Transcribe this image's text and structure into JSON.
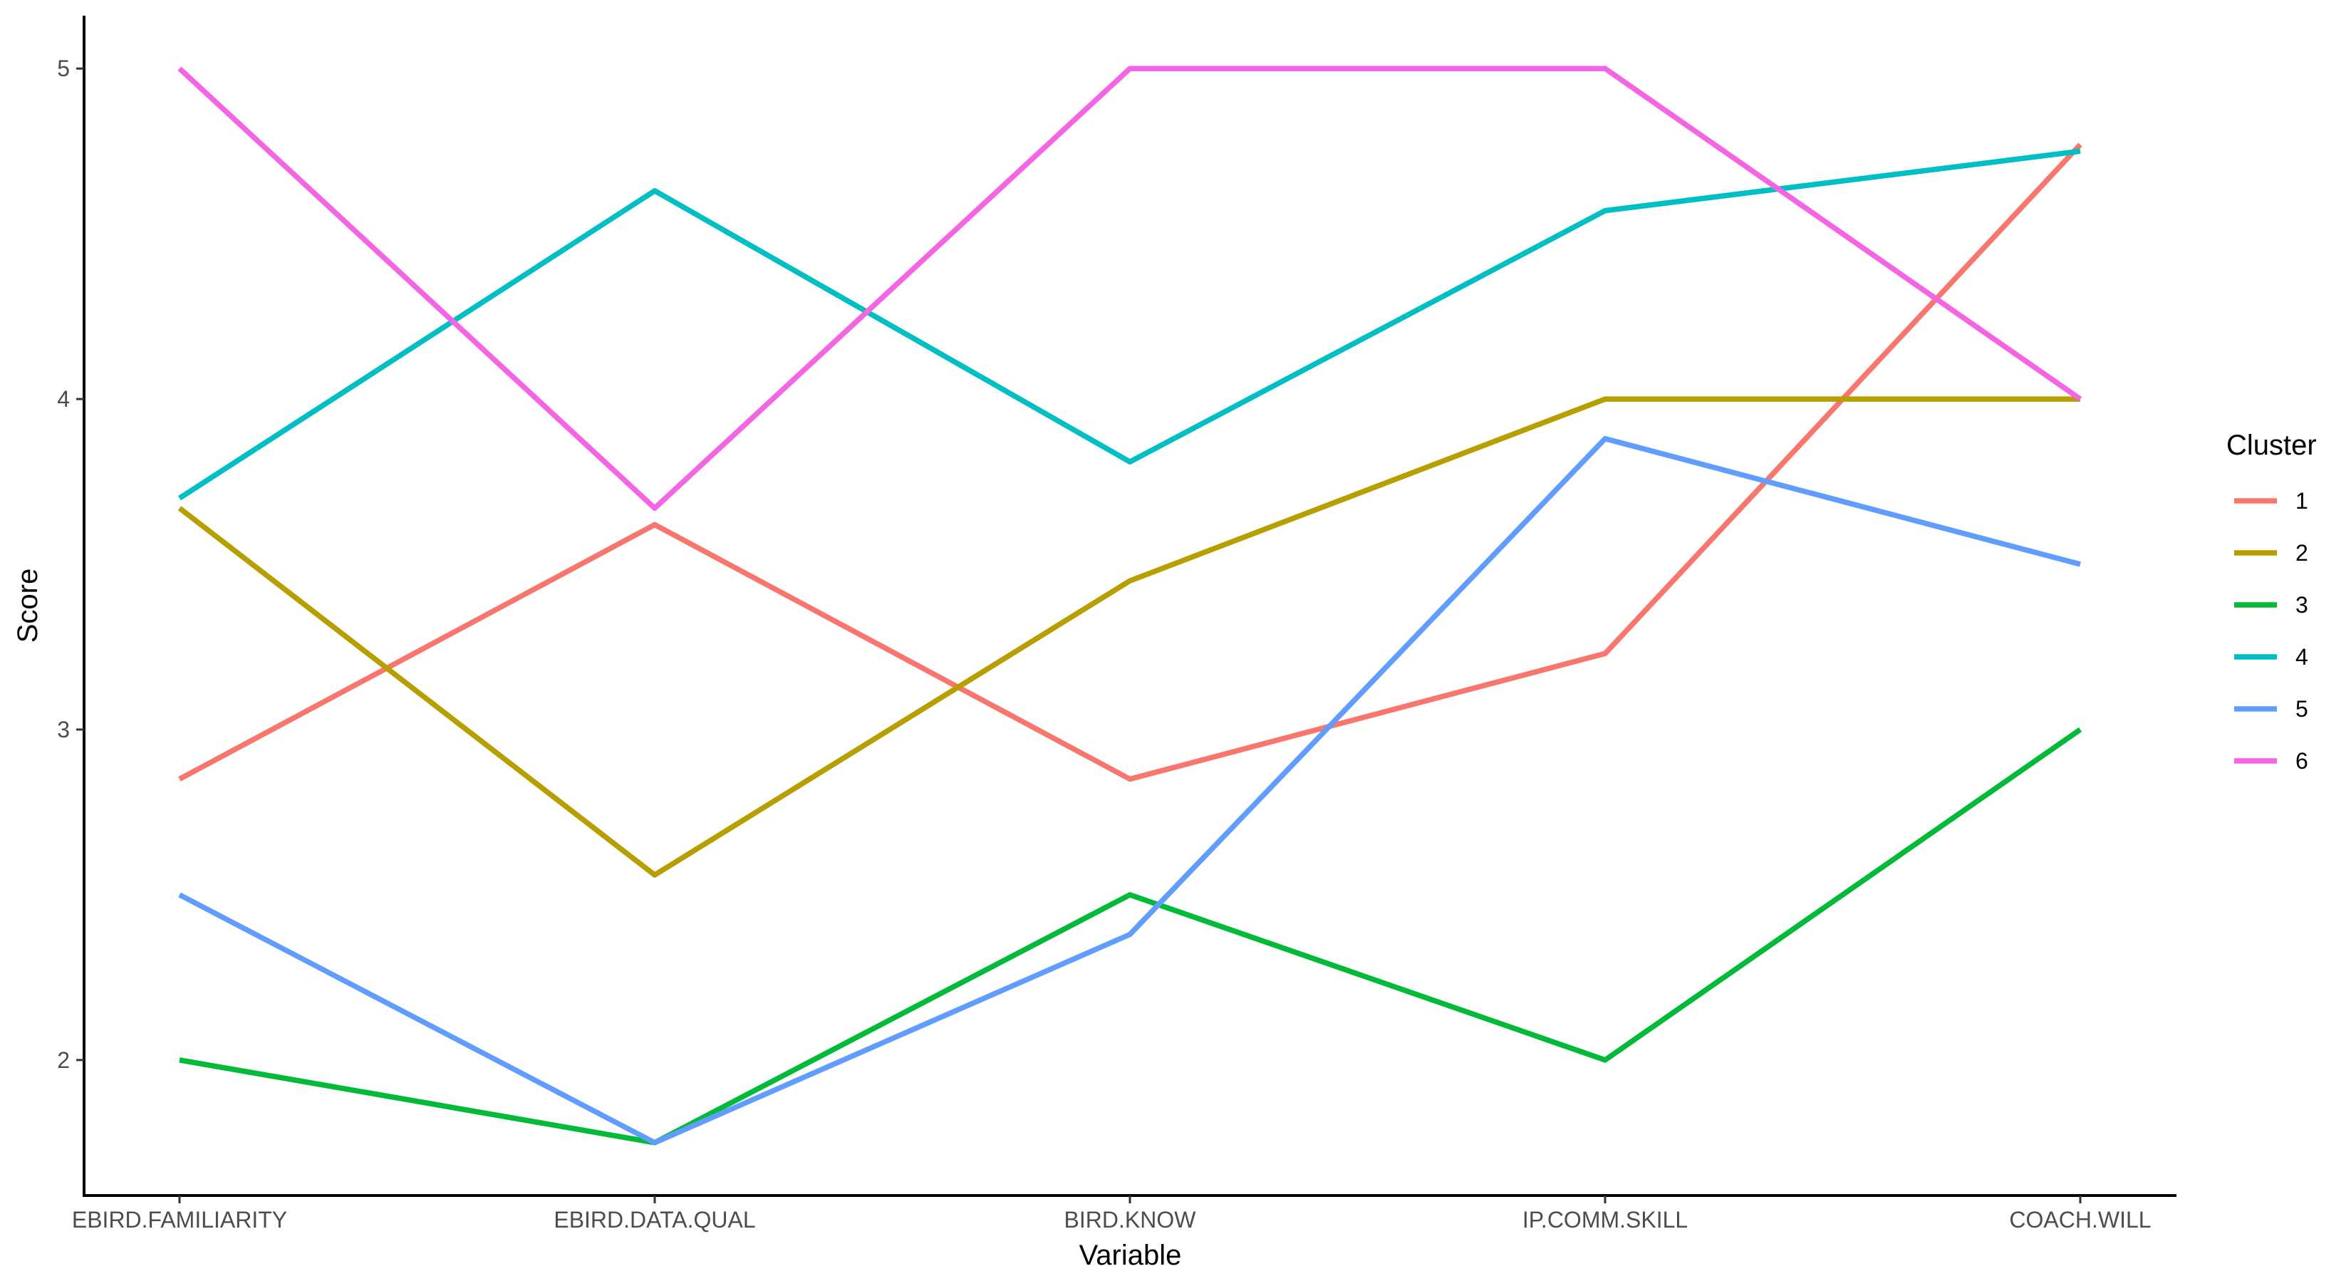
{
  "chart_data": {
    "type": "line",
    "xlabel": "Variable",
    "ylabel": "Score",
    "categories": [
      "EBIRD.FAMILIARITY",
      "EBIRD.DATA.QUAL",
      "BIRD.KNOW",
      "IP.COMM.SKILL",
      "COACH.WILL"
    ],
    "ylim": [
      1.59,
      5.16
    ],
    "yticks": [
      "2",
      "3",
      "4",
      "5"
    ],
    "grid": false,
    "legend": {
      "title": "Cluster",
      "position": "right"
    },
    "series": [
      {
        "name": "1",
        "color": "#F8766D",
        "values": [
          2.85,
          3.62,
          2.85,
          3.23,
          4.77
        ]
      },
      {
        "name": "2",
        "color": "#B79F00",
        "values": [
          3.67,
          2.56,
          3.45,
          4.0,
          4.0
        ]
      },
      {
        "name": "3",
        "color": "#00BA38",
        "values": [
          2.0,
          1.75,
          2.5,
          2.0,
          3.0
        ]
      },
      {
        "name": "4",
        "color": "#00BFC4",
        "values": [
          3.7,
          4.63,
          3.81,
          4.57,
          4.75
        ]
      },
      {
        "name": "5",
        "color": "#619CFF",
        "values": [
          2.5,
          1.75,
          2.38,
          3.88,
          3.5
        ]
      },
      {
        "name": "6",
        "color": "#F564E3",
        "values": [
          5.0,
          3.67,
          5.0,
          5.0,
          4.0
        ]
      }
    ]
  }
}
